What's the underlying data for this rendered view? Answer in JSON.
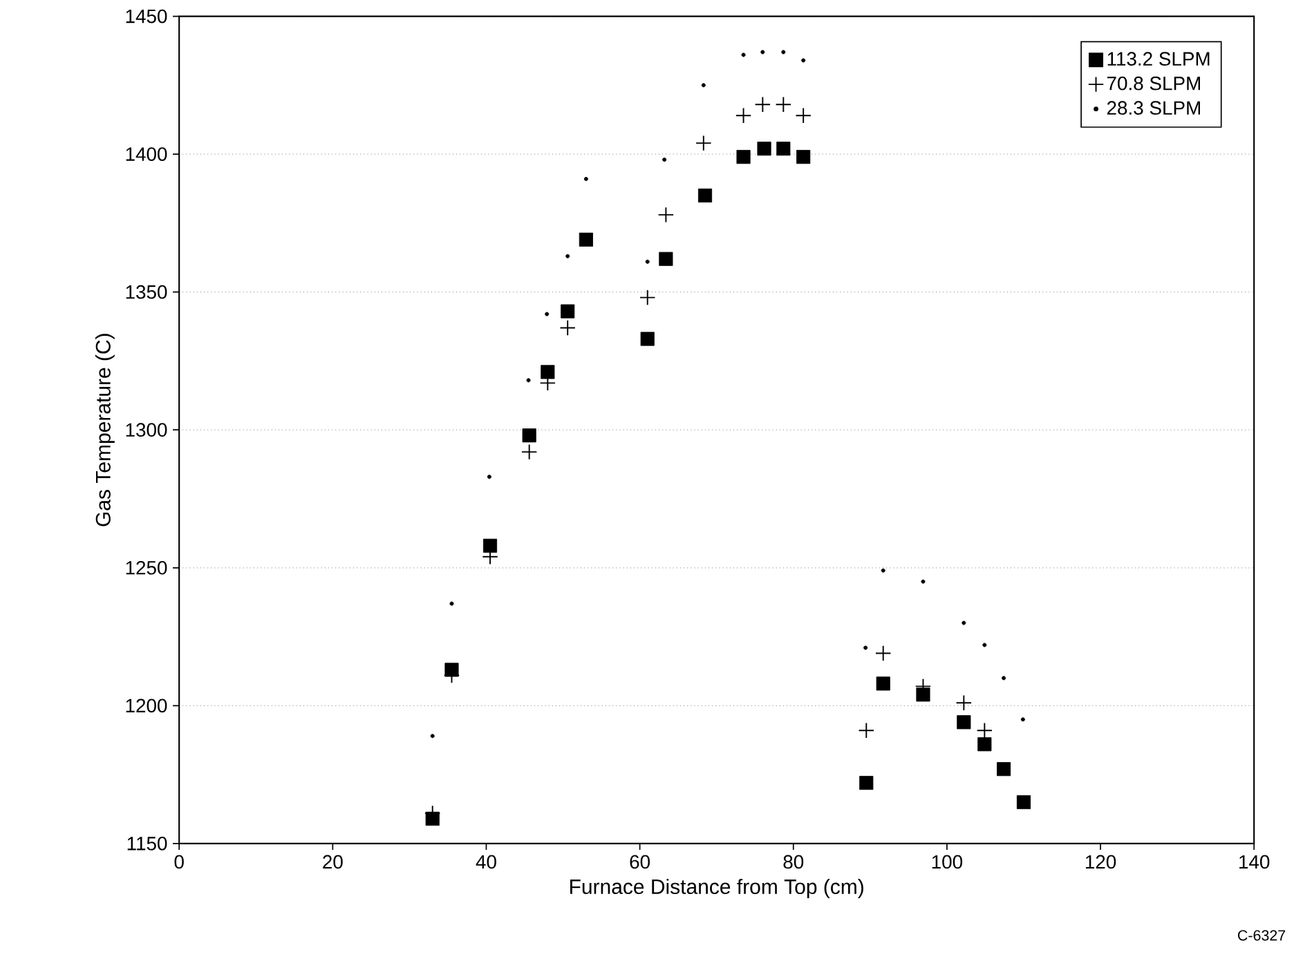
{
  "chart_data": {
    "type": "scatter",
    "xlabel": "Furnace Distance from Top (cm)",
    "ylabel": "Gas Temperature (C)",
    "xlim": [
      0,
      140
    ],
    "xticks": [
      0,
      20,
      40,
      60,
      80,
      100,
      120,
      140
    ],
    "ylim": [
      1150,
      1450
    ],
    "yticks": [
      1150,
      1200,
      1250,
      1300,
      1350,
      1400,
      1450
    ],
    "grid": "y",
    "legend": "top right",
    "annotations": [
      "C-6327"
    ],
    "series": [
      {
        "name": "113.2 SLPM",
        "color": "#000000",
        "marker": "square",
        "x": [
          33,
          35.5,
          40.5,
          45.6,
          48,
          50.6,
          53,
          61,
          63.4,
          68.5,
          73.5,
          76.2,
          78.7,
          81.3,
          89.5,
          91.7,
          96.9,
          102.2,
          104.9,
          107.4,
          110
        ],
        "values": [
          1159,
          1213,
          1258,
          1298,
          1321,
          1343,
          1369,
          1333,
          1362,
          1385,
          1399,
          1402,
          1402,
          1399,
          1172,
          1208,
          1204,
          1194,
          1186,
          1177,
          1165
        ]
      },
      {
        "name": "70.8 SLPM",
        "color": "#000000",
        "marker": "cross",
        "x": [
          33,
          35.5,
          40.5,
          45.6,
          48,
          50.6,
          61,
          63.4,
          68.3,
          73.5,
          76,
          78.7,
          81.3,
          89.5,
          91.7,
          96.9,
          102.2,
          104.9
        ],
        "values": [
          1161,
          1211,
          1254,
          1292,
          1317,
          1337,
          1348,
          1378,
          1404,
          1414,
          1418,
          1418,
          1414,
          1191,
          1219,
          1207,
          1201,
          1191
        ]
      },
      {
        "name": "28.3 SLPM",
        "color": "#000000",
        "marker": "circle",
        "x": [
          33,
          35.5,
          40.4,
          45.5,
          47.9,
          50.6,
          53,
          61,
          63.2,
          68.3,
          73.5,
          76,
          78.7,
          81.3,
          89.4,
          91.7,
          96.9,
          102.2,
          104.9,
          107.4,
          109.9
        ],
        "values": [
          1189,
          1237,
          1283,
          1318,
          1342,
          1363,
          1391,
          1361,
          1398,
          1425,
          1436,
          1437,
          1437,
          1434,
          1221,
          1249,
          1245,
          1230,
          1222,
          1210,
          1195
        ]
      }
    ]
  }
}
